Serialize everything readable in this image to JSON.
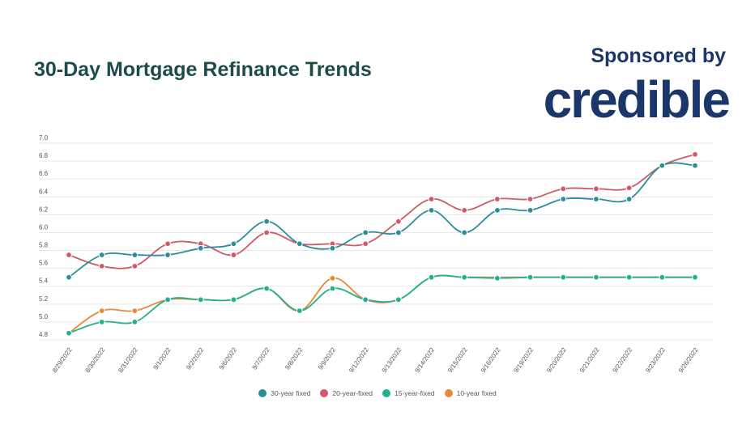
{
  "header": {
    "title": "30-Day Mortgage Refinance Trends",
    "sponsor": "Sponsored by",
    "logo": "credible"
  },
  "chart_data": {
    "type": "line",
    "title": "30-Day Mortgage Refinance Trends",
    "categories": [
      "8/29/2022",
      "8/30/2022",
      "8/31/2022",
      "9/1/2022",
      "9/2/2022",
      "9/6/2022",
      "9/7/2022",
      "9/8/2022",
      "9/9/2022",
      "9/12/2022",
      "9/13/2022",
      "9/14/2022",
      "9/15/2022",
      "9/16/2022",
      "9/19/2022",
      "9/20/2022",
      "9/21/2022",
      "9/22/2022",
      "9/23/2022",
      "9/26/2022"
    ],
    "yticks": [
      "4.8",
      "5.0",
      "5.2",
      "5.4",
      "5.6",
      "5.8",
      "6.0",
      "6.2",
      "6.4",
      "6.6",
      "6.8",
      "7.0"
    ],
    "ylim": [
      4.8,
      7.0
    ],
    "grid": true,
    "legend_placement": "bottom",
    "series": [
      {
        "name": "30-year fixed",
        "color": "#2a8d9a",
        "values": [
          5.5,
          5.75,
          5.75,
          5.75,
          5.825,
          5.875,
          6.125,
          5.875,
          5.825,
          6.0,
          6.0,
          6.25,
          6.0,
          6.25,
          6.25,
          6.375,
          6.375,
          6.375,
          6.75,
          6.75
        ]
      },
      {
        "name": "20-year-fixed",
        "color": "#d05a68",
        "values": [
          5.75,
          5.625,
          5.625,
          5.875,
          5.875,
          5.75,
          6.0,
          5.875,
          5.875,
          5.875,
          6.125,
          6.375,
          6.25,
          6.375,
          6.375,
          6.49,
          6.49,
          6.5,
          6.75,
          6.875
        ]
      },
      {
        "name": "15-year-fixed",
        "color": "#22b08e",
        "values": [
          4.875,
          5.0,
          5.0,
          5.25,
          5.25,
          5.25,
          5.375,
          5.125,
          5.375,
          5.25,
          5.25,
          5.5,
          5.5,
          5.49,
          5.5,
          5.5,
          5.5,
          5.5,
          5.5,
          5.5
        ]
      },
      {
        "name": "10-year fixed",
        "color": "#e8893a",
        "values": [
          4.875,
          5.125,
          5.125,
          5.25,
          5.25,
          5.25,
          5.375,
          5.125,
          5.49,
          5.25,
          5.25,
          5.5,
          5.5,
          5.5,
          5.5,
          5.5,
          5.5,
          5.5,
          5.5,
          5.5
        ]
      }
    ]
  }
}
